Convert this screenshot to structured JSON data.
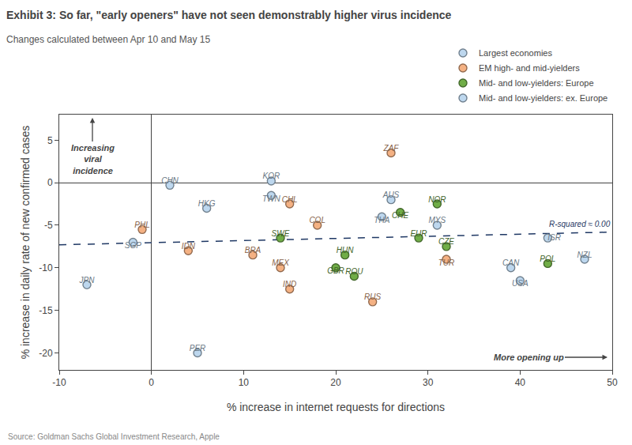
{
  "chart_data": {
    "type": "scatter",
    "title": "Exhibit 3: So far, \"early openers\" have not seen demonstrably higher virus incidence",
    "subtitle": "Changes calculated between Apr 10 and May 15",
    "source": "Source: Goldman Sachs Global Investment Research, Apple",
    "x_label": "% increase in internet requests for directions",
    "y_label": "% increase in daily rate of new confirmed cases",
    "annotations": [
      "Increasing viral incidence",
      "More opening up"
    ],
    "xlim": [
      -10,
      50
    ],
    "ylim": [
      -22,
      8
    ],
    "xticks": [
      -10,
      0,
      10,
      20,
      30,
      40,
      50
    ],
    "yticks": [
      -20,
      -15,
      -10,
      -5,
      0,
      5
    ],
    "grid": false,
    "legend": "upper right",
    "series": [
      {
        "name": "Largest economies",
        "color": "#BDD7EE",
        "labels": [
          "JPN",
          "CHN",
          "HKG",
          "KOR",
          "TWN",
          "THA",
          "AUS",
          "MYS",
          "CAN",
          "USA"
        ],
        "x": [
          -7,
          2,
          6,
          13,
          13,
          25,
          26,
          31,
          39,
          40
        ],
        "values": [
          -12,
          -0.3,
          -3,
          0.2,
          -1.5,
          -4,
          -2,
          -5,
          -10,
          -11.5
        ]
      },
      {
        "name": "EM high- and mid-yielders",
        "color": "#F4B183",
        "labels": [
          "PHL",
          "IDN",
          "CHL",
          "BRA",
          "MEX",
          "IND",
          "COL",
          "RUS",
          "ZAF",
          "TUR"
        ],
        "x": [
          -1,
          4,
          15,
          11,
          14,
          15,
          18,
          24,
          26,
          32
        ],
        "values": [
          -5.5,
          -8,
          -2.5,
          -8.5,
          -10,
          -12.5,
          -5,
          -14,
          3.5,
          -9
        ]
      },
      {
        "name": "Mid- and low-yielders: Europe",
        "color": "#70AD47",
        "labels": [
          "SWE",
          "HUN",
          "GBR",
          "ROU",
          "EUR",
          "CHE",
          "NOR",
          "CZE",
          "POL"
        ],
        "x": [
          14,
          21,
          20,
          22,
          29,
          27,
          31,
          32,
          43
        ],
        "values": [
          -6.5,
          -8.5,
          -10,
          -11,
          -6.5,
          -3.5,
          -2.5,
          -7.5,
          -9.5
        ]
      },
      {
        "name": "Mid- and low-yielders: ex. Europe",
        "color": "#BDD7EE",
        "labels": [
          "SGP",
          "ISR",
          "NZL",
          "PER"
        ],
        "x": [
          -2,
          43,
          47,
          5
        ],
        "values": [
          -7,
          -6.5,
          -9,
          -20
        ]
      }
    ],
    "trendline": {
      "x": [
        -10,
        50
      ],
      "values": [
        -7.3,
        -5.8
      ],
      "color": "#1F3864",
      "line_style": "dashed",
      "label": "R-squared ≈ 0.00"
    }
  }
}
